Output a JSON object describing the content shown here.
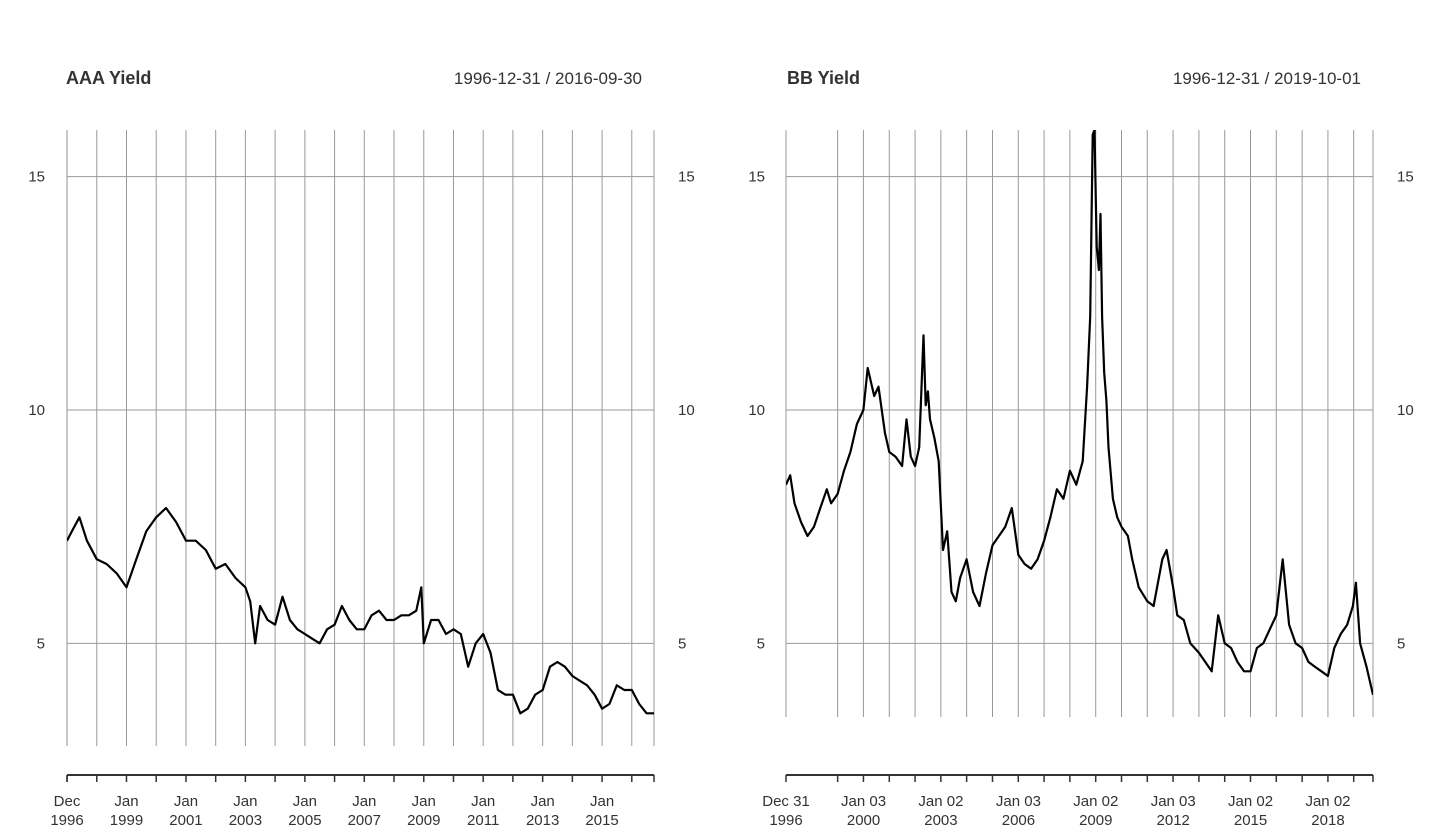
{
  "chart_data": [
    {
      "type": "line",
      "title": "AAA Yield",
      "date_range": "1996-12-31 / 2016-09-30",
      "ylim": [
        2.8,
        16
      ],
      "yticks": [
        5,
        10,
        15
      ],
      "grid": true,
      "x_start": "1996-12-31",
      "x_end": "2016-09-30",
      "xticks": [
        {
          "date": "1996-12-31",
          "label1": "Dec",
          "label2": "1996"
        },
        {
          "date": "1999-01-01",
          "label1": "Jan",
          "label2": "1999"
        },
        {
          "date": "2001-01-01",
          "label1": "Jan",
          "label2": "2001"
        },
        {
          "date": "2003-01-01",
          "label1": "Jan",
          "label2": "2003"
        },
        {
          "date": "2005-01-01",
          "label1": "Jan",
          "label2": "2005"
        },
        {
          "date": "2007-01-01",
          "label1": "Jan",
          "label2": "2007"
        },
        {
          "date": "2009-01-01",
          "label1": "Jan",
          "label2": "2009"
        },
        {
          "date": "2011-01-01",
          "label1": "Jan",
          "label2": "2011"
        },
        {
          "date": "2013-01-01",
          "label1": "Jan",
          "label2": "2013"
        },
        {
          "date": "2015-01-01",
          "label1": "Jan",
          "label2": "2015"
        }
      ],
      "vgrid_dates": [
        "1997-01-01",
        "1998-01-01",
        "1999-01-01",
        "2000-01-01",
        "2001-01-01",
        "2002-01-01",
        "2003-01-01",
        "2004-01-01",
        "2005-01-01",
        "2006-01-01",
        "2007-01-01",
        "2008-01-01",
        "2009-01-01",
        "2010-01-01",
        "2011-01-01",
        "2012-01-01",
        "2013-01-01",
        "2014-01-01",
        "2015-01-01",
        "2016-01-01"
      ],
      "series": [
        {
          "x": [
            "1996-12-31",
            "1997-03-01",
            "1997-06-01",
            "1997-09-01",
            "1998-01-01",
            "1998-05-01",
            "1998-09-01",
            "1999-01-01",
            "1999-05-01",
            "1999-09-01",
            "2000-01-01",
            "2000-05-01",
            "2000-09-01",
            "2001-01-01",
            "2001-05-01",
            "2001-09-01",
            "2002-01-01",
            "2002-05-01",
            "2002-09-01",
            "2003-01-01",
            "2003-03-01",
            "2003-05-01",
            "2003-07-01",
            "2003-10-01",
            "2004-01-01",
            "2004-04-01",
            "2004-07-01",
            "2004-10-01",
            "2005-01-01",
            "2005-04-01",
            "2005-07-01",
            "2005-10-01",
            "2006-01-01",
            "2006-04-01",
            "2006-07-01",
            "2006-10-01",
            "2007-01-01",
            "2007-04-01",
            "2007-07-01",
            "2007-10-01",
            "2008-01-01",
            "2008-04-01",
            "2008-07-01",
            "2008-10-01",
            "2008-12-01",
            "2009-01-01",
            "2009-04-01",
            "2009-07-01",
            "2009-10-01",
            "2010-01-01",
            "2010-04-01",
            "2010-07-01",
            "2010-10-01",
            "2011-01-01",
            "2011-04-01",
            "2011-07-01",
            "2011-10-01",
            "2012-01-01",
            "2012-04-01",
            "2012-07-01",
            "2012-10-01",
            "2013-01-01",
            "2013-04-01",
            "2013-07-01",
            "2013-10-01",
            "2014-01-01",
            "2014-04-01",
            "2014-07-01",
            "2014-10-01",
            "2015-01-01",
            "2015-04-01",
            "2015-07-01",
            "2015-10-01",
            "2016-01-01",
            "2016-04-01",
            "2016-07-01",
            "2016-09-30"
          ],
          "values": [
            7.2,
            7.4,
            7.7,
            7.2,
            6.8,
            6.7,
            6.5,
            6.2,
            6.8,
            7.4,
            7.7,
            7.9,
            7.6,
            7.2,
            7.2,
            7.0,
            6.6,
            6.7,
            6.4,
            6.2,
            5.9,
            5.0,
            5.8,
            5.5,
            5.4,
            6.0,
            5.5,
            5.3,
            5.2,
            5.1,
            5.0,
            5.3,
            5.4,
            5.8,
            5.5,
            5.3,
            5.3,
            5.6,
            5.7,
            5.5,
            5.5,
            5.6,
            5.6,
            5.7,
            6.2,
            5.0,
            5.5,
            5.5,
            5.2,
            5.3,
            5.2,
            4.5,
            5.0,
            5.2,
            4.8,
            4.0,
            3.9,
            3.9,
            3.5,
            3.6,
            3.9,
            4.0,
            4.5,
            4.6,
            4.5,
            4.3,
            4.2,
            4.1,
            3.9,
            3.6,
            3.7,
            4.1,
            4.0,
            4.0,
            3.7,
            3.5,
            3.5
          ]
        }
      ]
    },
    {
      "type": "line",
      "title": "BB Yield",
      "date_range": "1996-12-31 / 2019-10-01",
      "ylim": [
        2.8,
        16
      ],
      "yticks": [
        5,
        10,
        15
      ],
      "grid": true,
      "x_start": "1996-12-31",
      "x_end": "2019-10-01",
      "xticks": [
        {
          "date": "1996-12-31",
          "label1": "Dec 31",
          "label2": "1996"
        },
        {
          "date": "2000-01-03",
          "label1": "Jan 03",
          "label2": "2000"
        },
        {
          "date": "2003-01-02",
          "label1": "Jan 02",
          "label2": "2003"
        },
        {
          "date": "2006-01-03",
          "label1": "Jan 03",
          "label2": "2006"
        },
        {
          "date": "2009-01-02",
          "label1": "Jan 02",
          "label2": "2009"
        },
        {
          "date": "2012-01-03",
          "label1": "Jan 03",
          "label2": "2012"
        },
        {
          "date": "2015-01-02",
          "label1": "Jan 02",
          "label2": "2015"
        },
        {
          "date": "2018-01-02",
          "label1": "Jan 02",
          "label2": "2018"
        }
      ],
      "vgrid_dates": [
        "1999-01-01",
        "2000-01-01",
        "2001-01-01",
        "2002-01-01",
        "2003-01-01",
        "2004-01-01",
        "2005-01-01",
        "2006-01-01",
        "2007-01-01",
        "2008-01-01",
        "2009-01-01",
        "2010-01-01",
        "2011-01-01",
        "2012-01-01",
        "2013-01-01",
        "2014-01-01",
        "2015-01-01",
        "2016-01-01",
        "2017-01-01",
        "2018-01-01",
        "2019-01-01"
      ],
      "series": [
        {
          "x": [
            "1996-12-31",
            "1997-03-01",
            "1997-05-01",
            "1997-08-01",
            "1997-11-01",
            "1998-02-01",
            "1998-05-01",
            "1998-08-01",
            "1998-10-01",
            "1999-01-01",
            "1999-04-01",
            "1999-07-01",
            "1999-10-01",
            "2000-01-01",
            "2000-03-01",
            "2000-06-01",
            "2000-08-01",
            "2000-11-01",
            "2001-01-01",
            "2001-04-01",
            "2001-07-01",
            "2001-09-01",
            "2001-11-01",
            "2002-01-01",
            "2002-03-01",
            "2002-05-01",
            "2002-06-01",
            "2002-07-01",
            "2002-08-01",
            "2002-10-01",
            "2002-12-01",
            "2003-02-01",
            "2003-04-01",
            "2003-06-01",
            "2003-08-01",
            "2003-10-01",
            "2004-01-01",
            "2004-04-01",
            "2004-07-01",
            "2004-10-01",
            "2005-01-01",
            "2005-04-01",
            "2005-07-01",
            "2005-10-01",
            "2006-01-01",
            "2006-04-01",
            "2006-07-01",
            "2006-10-01",
            "2007-01-01",
            "2007-04-01",
            "2007-07-01",
            "2007-10-01",
            "2008-01-01",
            "2008-04-01",
            "2008-07-01",
            "2008-09-01",
            "2008-10-15",
            "2008-11-20",
            "2008-12-15",
            "2009-01-15",
            "2009-02-15",
            "2009-03-10",
            "2009-04-01",
            "2009-05-01",
            "2009-06-01",
            "2009-07-01",
            "2009-09-01",
            "2009-11-01",
            "2010-01-01",
            "2010-04-01",
            "2010-06-01",
            "2010-09-01",
            "2011-01-01",
            "2011-04-01",
            "2011-08-01",
            "2011-10-01",
            "2012-01-01",
            "2012-03-01",
            "2012-06-01",
            "2012-09-01",
            "2013-01-01",
            "2013-04-01",
            "2013-07-01",
            "2013-10-01",
            "2014-01-01",
            "2014-04-01",
            "2014-07-01",
            "2014-10-01",
            "2015-01-01",
            "2015-04-01",
            "2015-07-01",
            "2015-10-01",
            "2016-01-01",
            "2016-02-15",
            "2016-04-01",
            "2016-07-01",
            "2016-10-01",
            "2017-01-01",
            "2017-04-01",
            "2017-07-01",
            "2017-10-01",
            "2018-01-01",
            "2018-04-01",
            "2018-07-01",
            "2018-10-01",
            "2018-12-20",
            "2019-02-01",
            "2019-04-01",
            "2019-07-01",
            "2019-10-01"
          ],
          "values": [
            8.4,
            8.6,
            8.0,
            7.6,
            7.3,
            7.5,
            7.9,
            8.3,
            8.0,
            8.2,
            8.7,
            9.1,
            9.7,
            10.0,
            10.9,
            10.3,
            10.5,
            9.5,
            9.1,
            9.0,
            8.8,
            9.8,
            9.0,
            8.8,
            9.2,
            11.6,
            10.1,
            10.4,
            9.8,
            9.4,
            8.9,
            7.0,
            7.4,
            6.1,
            5.9,
            6.4,
            6.8,
            6.1,
            5.8,
            6.5,
            7.1,
            7.3,
            7.5,
            7.9,
            6.9,
            6.7,
            6.6,
            6.8,
            7.2,
            7.7,
            8.3,
            8.1,
            8.7,
            8.4,
            8.9,
            10.5,
            12.0,
            15.9,
            16.0,
            13.5,
            13.0,
            14.2,
            12.0,
            10.8,
            10.2,
            9.2,
            8.1,
            7.7,
            7.5,
            7.3,
            6.8,
            6.2,
            5.9,
            5.8,
            6.8,
            7.0,
            6.2,
            5.6,
            5.5,
            5.0,
            4.8,
            4.6,
            4.4,
            5.6,
            5.0,
            4.9,
            4.6,
            4.4,
            4.4,
            4.9,
            5.0,
            5.3,
            5.6,
            6.2,
            6.8,
            5.4,
            5.0,
            4.9,
            4.6,
            4.5,
            4.4,
            4.3,
            4.9,
            5.2,
            5.4,
            5.8,
            6.3,
            5.0,
            4.5,
            3.9
          ]
        }
      ]
    }
  ]
}
